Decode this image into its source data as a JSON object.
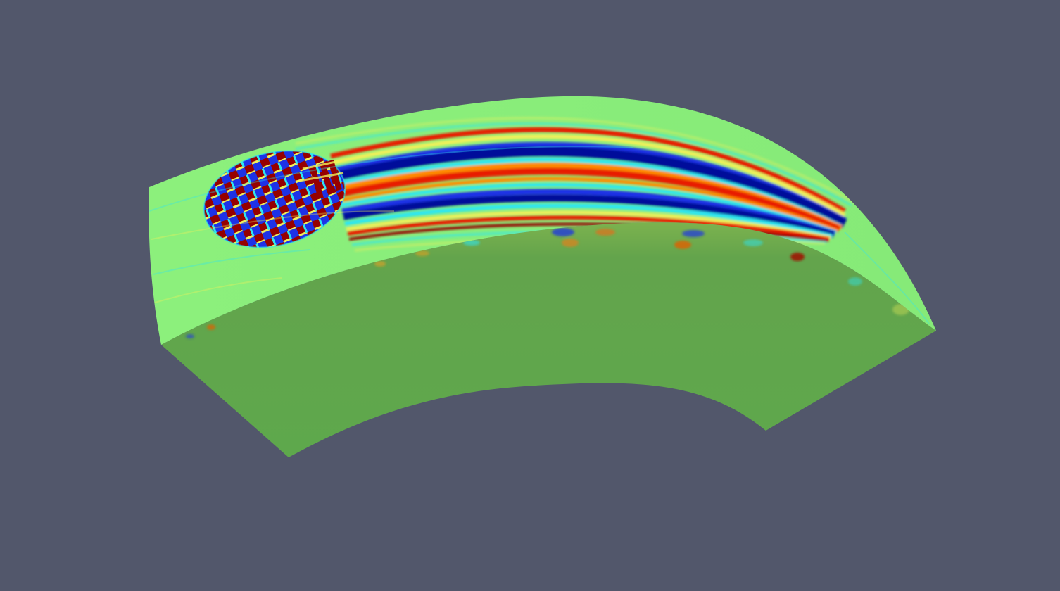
{
  "scene": {
    "background_color": "#52576b",
    "colormap": "jet",
    "colors": {
      "neutral_top": "#8cf57a",
      "neutral_side": "#60a850",
      "neutral_front": "#5ea84c",
      "deep_blue": "#000f9a",
      "blue": "#1e32e6",
      "cyan": "#2ee6f0",
      "yellow": "#f0f05a",
      "orange": "#ff8a00",
      "red": "#e81a00",
      "dark_red": "#960000"
    },
    "objects": [
      {
        "name": "curved-shell-slab",
        "surfaces": [
          "top-surface",
          "left-side-face",
          "front-cut-face"
        ]
      },
      {
        "name": "wave-source-patch",
        "pattern": "checkered"
      },
      {
        "name": "propagating-wavefront-bands",
        "band_order": [
          "dark_red",
          "yellow",
          "blue",
          "deep_blue",
          "cyan",
          "orange",
          "red",
          "blue",
          "deep_blue",
          "cyan",
          "red",
          "dark_red"
        ]
      }
    ]
  }
}
